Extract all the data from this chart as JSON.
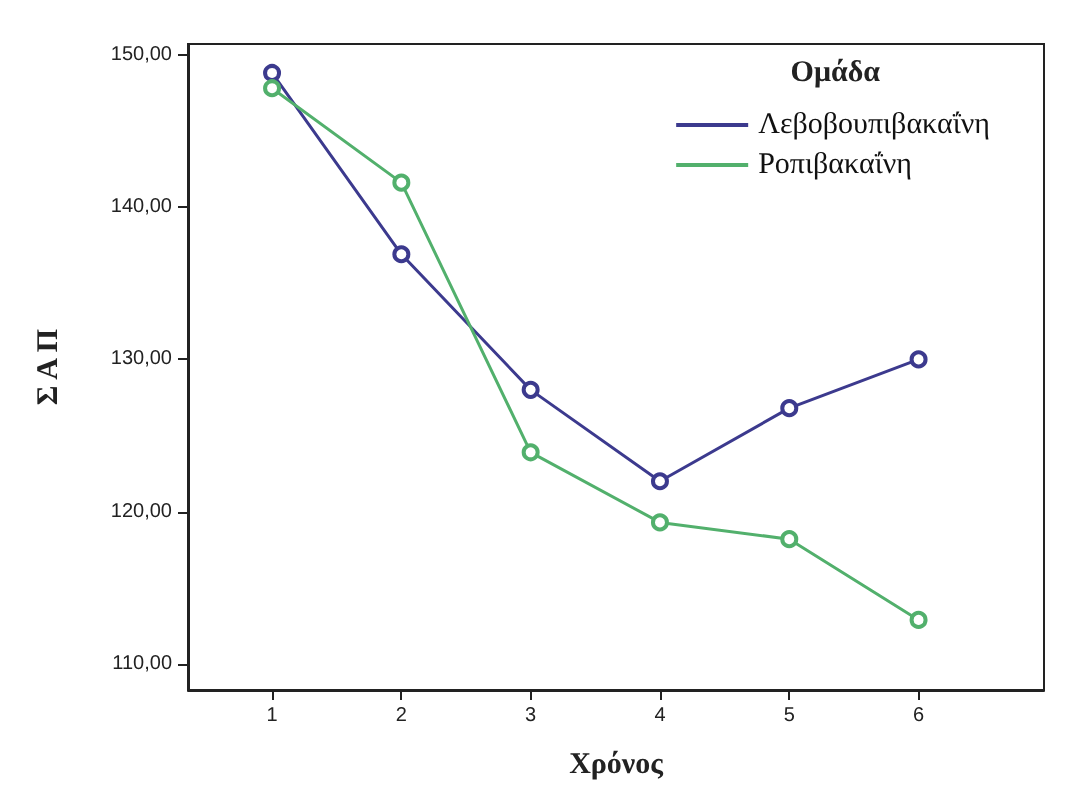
{
  "chart_data": {
    "type": "line",
    "xlabel": "Χρόνος",
    "ylabel": "Σ Α Π",
    "legend_title": "Ομάδα",
    "x": [
      1,
      2,
      3,
      4,
      5,
      6
    ],
    "series": [
      {
        "name": "Λεβοβουπιβακαΐνη",
        "color": "#3c3a8e",
        "values": [
          148.8,
          136.9,
          128.0,
          122.0,
          126.8,
          130.0
        ]
      },
      {
        "name": "Ροπιβακαΐνη",
        "color": "#52b06c",
        "values": [
          147.8,
          141.6,
          123.9,
          119.3,
          118.2,
          112.9
        ]
      }
    ],
    "xlim": [
      0.35,
      6.97
    ],
    "xticks": [
      1,
      2,
      3,
      4,
      5,
      6
    ],
    "ylim": [
      108.3,
      150.7
    ],
    "yticks": [
      {
        "value": 110,
        "label": "110,00"
      },
      {
        "value": 120,
        "label": "120,00"
      },
      {
        "value": 130,
        "label": "130,00"
      },
      {
        "value": 140,
        "label": "140,00"
      },
      {
        "value": 150,
        "label": "150,00"
      }
    ],
    "grid": false,
    "legend": "top right",
    "marker": "circle",
    "line_style": "solid"
  }
}
